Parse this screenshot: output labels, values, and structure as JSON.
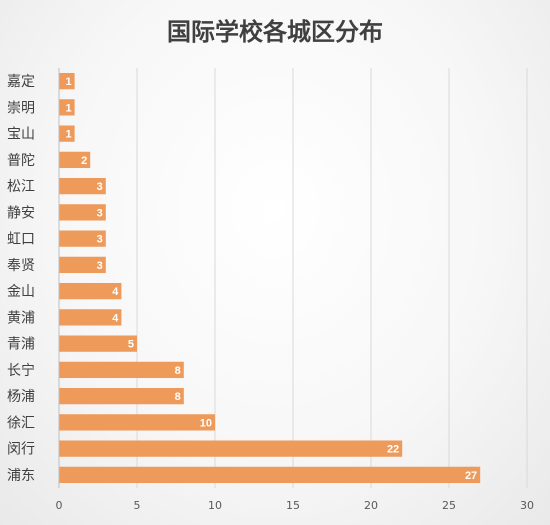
{
  "chart_data": {
    "type": "bar",
    "orientation": "horizontal",
    "title": "国际学校各城区分布",
    "categories": [
      "嘉定",
      "崇明",
      "宝山",
      "普陀",
      "松江",
      "静安",
      "虹口",
      "奉贤",
      "金山",
      "黄浦",
      "青浦",
      "长宁",
      "杨浦",
      "徐汇",
      "闵行",
      "浦东"
    ],
    "values": [
      1,
      1,
      1,
      2,
      3,
      3,
      3,
      3,
      4,
      4,
      5,
      8,
      8,
      10,
      22,
      27
    ],
    "xlabel": "",
    "ylabel": "",
    "xlim": [
      0,
      30
    ],
    "xticks": [
      "0",
      "5",
      "10",
      "15",
      "20",
      "25",
      "30"
    ],
    "grid": true,
    "legend": "none",
    "bar_color": "#ED9A5A",
    "label_color": "#FFFFFF"
  }
}
